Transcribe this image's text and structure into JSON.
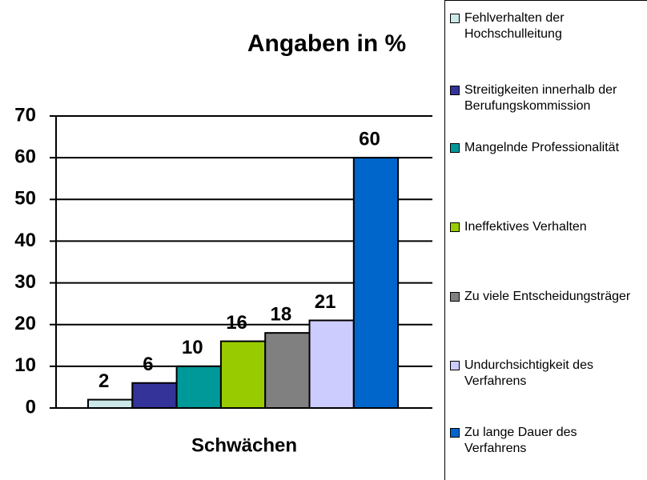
{
  "chart_data": {
    "type": "bar",
    "title": "Angaben in %",
    "x_label": "Schwächen",
    "categories": [
      null
    ],
    "series": [
      {
        "name": "Fehlverhalten der Hochschulleitung",
        "color": "#cce8e8",
        "values": [
          2
        ]
      },
      {
        "name": "Streitigkeiten innerhalb der Berufungskommission",
        "color": "#333399",
        "values": [
          6
        ]
      },
      {
        "name": "Mangelnde Professionalität",
        "color": "#009999",
        "values": [
          10
        ]
      },
      {
        "name": "Ineffektives Verhalten",
        "color": "#99cc00",
        "values": [
          16
        ]
      },
      {
        "name": "Zu viele Entscheidungsträger",
        "color": "#808080",
        "values": [
          18
        ]
      },
      {
        "name": "Undurchsichtigkeit des Verfahrens",
        "color": "#ccccff",
        "values": [
          21
        ]
      },
      {
        "name": "Zu lange Dauer des Verfahrens",
        "color": "#0066cc",
        "values": [
          60
        ]
      }
    ],
    "ylim": [
      0,
      70
    ],
    "yticks": [
      0,
      10,
      20,
      30,
      40,
      50,
      60,
      70
    ],
    "grid": true,
    "legend": "right"
  }
}
